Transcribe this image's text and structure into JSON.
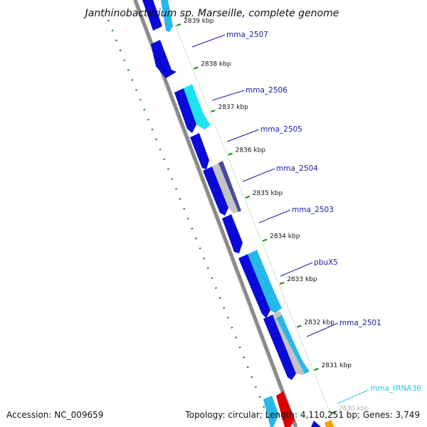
{
  "title": "Janthinobacterium sp. Marseille, complete genome",
  "footer": {
    "accession": "Accession: NC_009659",
    "stats": "Topology: circular; Length: 4,110,251 bp; Genes: 3,749"
  },
  "colors": {
    "cds_dark": "#0a0ad8",
    "cds_light": "#27b8ea",
    "cds_cyan": "#1ee4f2",
    "cds_purple": "#4a4a9a",
    "cds_gray": "#c4c4c4",
    "trna": "#d90000",
    "rrna": "#f5a000",
    "gc_skew": "#228b22",
    "backbone": "#8a8a8a",
    "gene_label": "#1a1aa6",
    "trna_label": "#29c5e6"
  },
  "ticks": [
    "2839 kbp",
    "2838 kbp",
    "2837 kbp",
    "2836 kbp",
    "2835 kbp",
    "2834 kbp",
    "2833 kbp",
    "2832 kbp",
    "2831 kbp",
    "2830 kbp"
  ],
  "gene_labels": [
    "mma_2507",
    "mma_2506",
    "mma_2505",
    "mma_2504",
    "mma_2503",
    "pbuX5",
    "mma_2501"
  ],
  "trna_label": "mma_tRNA36"
}
